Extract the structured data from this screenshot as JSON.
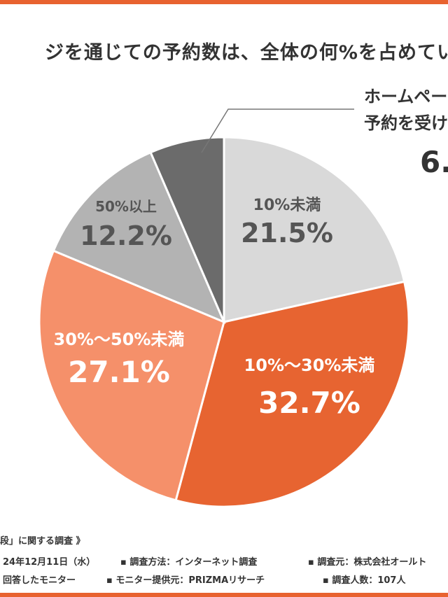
{
  "title": "ジを通じての予約数は、全体の何%を占めてい",
  "chart_data": {
    "type": "pie",
    "title": "ジを通じての予約数は、全体の何%を占めてい",
    "slices": [
      {
        "label": "10%未満",
        "value": 21.5,
        "value_label": "21.5%",
        "color": "#d9d9d9",
        "text_color": "#555555"
      },
      {
        "label": "10%〜30%未満",
        "value": 32.7,
        "value_label": "32.7%",
        "color": "#e76431",
        "text_color": "#ffffff"
      },
      {
        "label": "30%〜50%未満",
        "value": 27.1,
        "value_label": "27.1%",
        "color": "#f5906a",
        "text_color": "#ffffff"
      },
      {
        "label": "50%以上",
        "value": 12.2,
        "value_label": "12.2%",
        "color": "#b3b3b3",
        "text_color": "#555555"
      },
      {
        "label": "ホームペー 予約を受け",
        "value": 6.5,
        "value_label": "6.",
        "color": "#6b6b6b",
        "text_color": "#333333"
      }
    ],
    "callout": {
      "line1": "ホームペー",
      "line2": "予約を受け",
      "value": "6."
    }
  },
  "footer": {
    "heading": "段」に関する調査 》",
    "row1": {
      "date": "24年12月11日（水）",
      "method": "▪ 調査方法：インターネット調査",
      "source": "▪ 調査元：株式会社オールト"
    },
    "row2": {
      "target": "回答したモニター",
      "provider": "▪ モニター提供元：PRIZMAリサーチ",
      "count": "▪ 調査人数：107人"
    }
  },
  "colors": {
    "accent": "#e8622f",
    "text": "#333333"
  }
}
